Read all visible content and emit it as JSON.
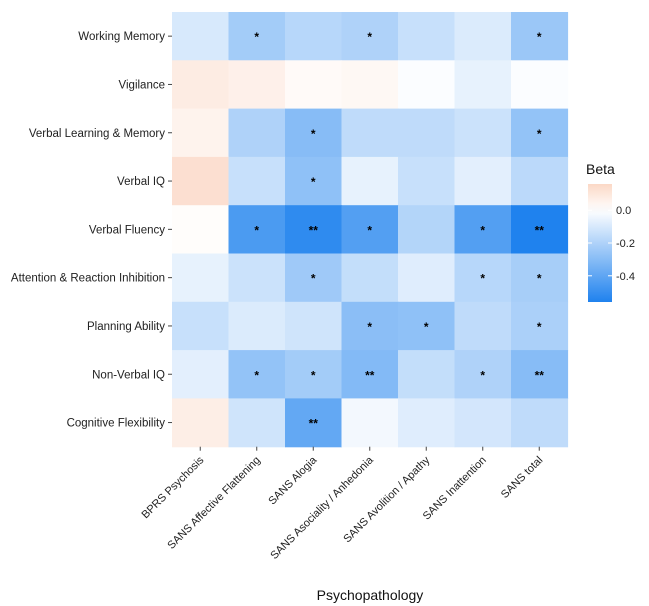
{
  "chart_data": {
    "type": "heatmap",
    "xlabel": "Psychopathology",
    "x_categories": [
      "BPRS Psychosis",
      "SANS Affective Flattening",
      "SANS Alogia",
      "SANS Asociality / Anhedonia",
      "SANS Avolition / Apathy",
      "SANS Inattention",
      "SANS total"
    ],
    "y_categories": [
      "Working Memory",
      "Vigilance",
      "Verbal Learning & Memory",
      "Verbal IQ",
      "Verbal Fluency",
      "Attention & Reaction Inhibition",
      "Planning Ability",
      "Non-Verbal IQ",
      "Cognitive Flexibility"
    ],
    "values": [
      [
        -0.1,
        -0.23,
        -0.18,
        -0.2,
        -0.14,
        -0.09,
        -0.25
      ],
      [
        0.08,
        0.06,
        0.02,
        0.03,
        -0.01,
        -0.06,
        -0.01
      ],
      [
        0.05,
        -0.2,
        -0.3,
        -0.16,
        -0.16,
        -0.13,
        -0.27
      ],
      [
        0.13,
        -0.14,
        -0.28,
        -0.06,
        -0.14,
        -0.07,
        -0.17
      ],
      [
        0.01,
        -0.45,
        -0.52,
        -0.43,
        -0.19,
        -0.43,
        -0.56
      ],
      [
        -0.06,
        -0.13,
        -0.24,
        -0.15,
        -0.08,
        -0.18,
        -0.22
      ],
      [
        -0.14,
        -0.09,
        -0.12,
        -0.29,
        -0.28,
        -0.16,
        -0.21
      ],
      [
        -0.07,
        -0.27,
        -0.23,
        -0.31,
        -0.15,
        -0.2,
        -0.3
      ],
      [
        0.07,
        -0.12,
        -0.39,
        -0.03,
        -0.08,
        -0.11,
        -0.16
      ]
    ],
    "annotations": [
      [
        "",
        "*",
        "",
        "*",
        "",
        "",
        "*"
      ],
      [
        "",
        "",
        "",
        "",
        "",
        "",
        ""
      ],
      [
        "",
        "",
        "*",
        "",
        "",
        "",
        "*"
      ],
      [
        "",
        "",
        "*",
        "",
        "",
        "",
        ""
      ],
      [
        "",
        "*",
        "**",
        "*",
        "",
        "*",
        "**"
      ],
      [
        "",
        "",
        "*",
        "",
        "",
        "*",
        "*"
      ],
      [
        "",
        "",
        "",
        "*",
        "*",
        "",
        "*"
      ],
      [
        "",
        "*",
        "*",
        "**",
        "",
        "*",
        "**"
      ],
      [
        "",
        "",
        "**",
        "",
        "",
        "",
        ""
      ]
    ],
    "legend": {
      "title": "Beta",
      "ticks": [
        0.0,
        -0.2,
        -0.4
      ],
      "tick_labels": [
        "0.0",
        "-0.2",
        "-0.4"
      ],
      "range": [
        -0.56,
        0.16
      ],
      "position": "right"
    },
    "colors": {
      "high": "#fbd8c6",
      "mid": "#ffffff",
      "low": "#1f82ee"
    },
    "grid": false
  }
}
